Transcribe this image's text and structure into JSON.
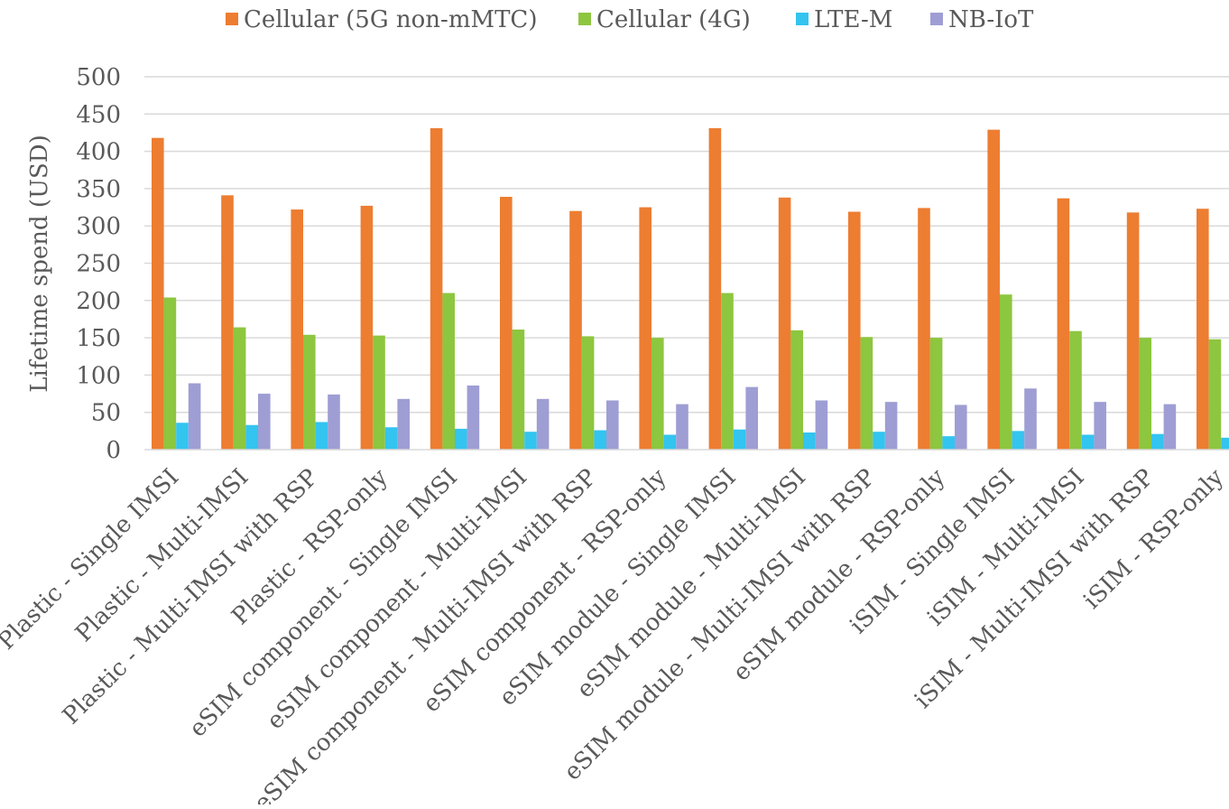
{
  "chart_data": {
    "type": "bar",
    "title": "",
    "xlabel": "",
    "ylabel": "Lifetime spend (USD)",
    "ylim": [
      0,
      500
    ],
    "yticks": [
      0,
      50,
      100,
      150,
      200,
      250,
      300,
      350,
      400,
      450,
      500
    ],
    "grid": true,
    "legend_position": "top",
    "categories": [
      "Plastic - Single IMSI",
      "Plastic - Multi-IMSI",
      "Plastic - Multi-IMSI with RSP",
      "Plastic - RSP-only",
      "eSIM component - Single IMSI",
      "eSIM component - Multi-IMSI",
      "eSIM component - Multi-IMSI with RSP",
      "eSIM component - RSP-only",
      "eSIM module - Single IMSI",
      "eSIM module - Multi-IMSI",
      "eSIM module - Multi-IMSI with RSP",
      "eSIM module - RSP-only",
      "iSIM - Single IMSI",
      "iSIM - Multi-IMSI",
      "iSIM - Multi-IMSI with RSP",
      "iSIM - RSP-only"
    ],
    "series": [
      {
        "name": "Cellular (5G non-mMTC)",
        "color": "#ED7D31",
        "values": [
          418,
          341,
          322,
          327,
          431,
          339,
          320,
          325,
          431,
          338,
          319,
          324,
          429,
          337,
          318,
          323
        ]
      },
      {
        "name": "Cellular (4G)",
        "color": "#8DC63F",
        "values": [
          204,
          164,
          154,
          153,
          210,
          161,
          152,
          150,
          210,
          160,
          151,
          150,
          208,
          159,
          150,
          148
        ]
      },
      {
        "name": "LTE-M",
        "color": "#33C4F0",
        "values": [
          36,
          33,
          37,
          30,
          28,
          24,
          26,
          20,
          27,
          23,
          24,
          18,
          25,
          20,
          21,
          16
        ]
      },
      {
        "name": "NB-IoT",
        "color": "#9E9ED4",
        "values": [
          89,
          75,
          74,
          68,
          86,
          68,
          66,
          61,
          84,
          66,
          64,
          60,
          82,
          64,
          61,
          58
        ]
      }
    ]
  }
}
